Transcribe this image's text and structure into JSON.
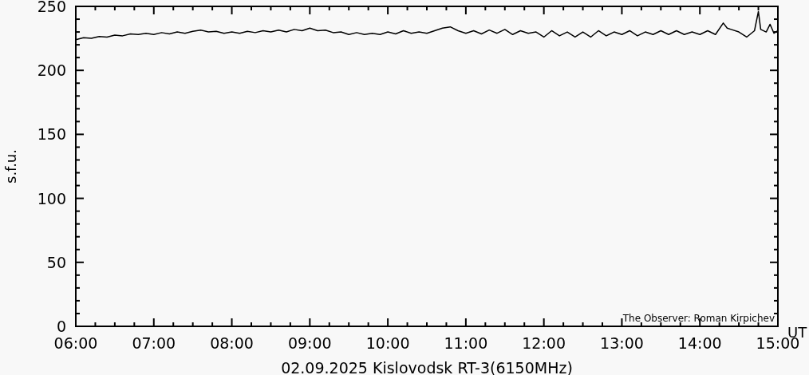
{
  "chart_data": {
    "type": "line",
    "xlabel": "02.09.2025 Kislovodsk RT-3(6150MHz)",
    "ylabel": "s.f.u.",
    "annotations": [
      "UT",
      "The Observer: Roman Kirpichev"
    ],
    "xlim": [
      6,
      15
    ],
    "ylim": [
      0,
      250
    ],
    "xticks": [
      {
        "value": 6,
        "label": "06:00"
      },
      {
        "value": 6.25,
        "label": null
      },
      {
        "value": 6.5,
        "label": null
      },
      {
        "value": 6.75,
        "label": null
      },
      {
        "value": 7,
        "label": "07:00"
      },
      {
        "value": 7.25,
        "label": null
      },
      {
        "value": 7.5,
        "label": null
      },
      {
        "value": 7.75,
        "label": null
      },
      {
        "value": 8,
        "label": "08:00"
      },
      {
        "value": 8.25,
        "label": null
      },
      {
        "value": 8.5,
        "label": null
      },
      {
        "value": 8.75,
        "label": null
      },
      {
        "value": 9,
        "label": "09:00"
      },
      {
        "value": 9.25,
        "label": null
      },
      {
        "value": 9.5,
        "label": null
      },
      {
        "value": 9.75,
        "label": null
      },
      {
        "value": 10,
        "label": "10:00"
      },
      {
        "value": 10.25,
        "label": null
      },
      {
        "value": 10.5,
        "label": null
      },
      {
        "value": 10.75,
        "label": null
      },
      {
        "value": 11,
        "label": "11:00"
      },
      {
        "value": 11.25,
        "label": null
      },
      {
        "value": 11.5,
        "label": null
      },
      {
        "value": 11.75,
        "label": null
      },
      {
        "value": 12,
        "label": "12:00"
      },
      {
        "value": 12.25,
        "label": null
      },
      {
        "value": 12.5,
        "label": null
      },
      {
        "value": 12.75,
        "label": null
      },
      {
        "value": 13,
        "label": "13:00"
      },
      {
        "value": 13.25,
        "label": null
      },
      {
        "value": 13.5,
        "label": null
      },
      {
        "value": 13.75,
        "label": null
      },
      {
        "value": 14,
        "label": "14:00"
      },
      {
        "value": 14.25,
        "label": null
      },
      {
        "value": 14.5,
        "label": null
      },
      {
        "value": 14.75,
        "label": null
      },
      {
        "value": 15,
        "label": "15:00"
      }
    ],
    "yticks": [
      0,
      {
        "value": 10,
        "label": null
      },
      {
        "value": 20,
        "label": null
      },
      {
        "value": 30,
        "label": null
      },
      {
        "value": 40,
        "label": null
      },
      50,
      {
        "value": 60,
        "label": null
      },
      {
        "value": 70,
        "label": null
      },
      {
        "value": 80,
        "label": null
      },
      {
        "value": 90,
        "label": null
      },
      100,
      {
        "value": 110,
        "label": null
      },
      {
        "value": 120,
        "label": null
      },
      {
        "value": 130,
        "label": null
      },
      {
        "value": 140,
        "label": null
      },
      150,
      {
        "value": 160,
        "label": null
      },
      {
        "value": 170,
        "label": null
      },
      {
        "value": 180,
        "label": null
      },
      {
        "value": 190,
        "label": null
      },
      200,
      {
        "value": 210,
        "label": null
      },
      {
        "value": 220,
        "label": null
      },
      {
        "value": 230,
        "label": null
      },
      {
        "value": 240,
        "label": null
      },
      250
    ],
    "grid": false,
    "marker": "none",
    "line_style": "solid",
    "series": [
      {
        "color": "#000000",
        "x": [
          6.0,
          6.1,
          6.2,
          6.3,
          6.4,
          6.5,
          6.6,
          6.7,
          6.8,
          6.9,
          7.0,
          7.1,
          7.2,
          7.3,
          7.4,
          7.5,
          7.6,
          7.7,
          7.8,
          7.9,
          8.0,
          8.1,
          8.2,
          8.3,
          8.4,
          8.5,
          8.6,
          8.7,
          8.8,
          8.9,
          9.0,
          9.1,
          9.2,
          9.3,
          9.4,
          9.5,
          9.6,
          9.7,
          9.8,
          9.9,
          10.0,
          10.1,
          10.2,
          10.3,
          10.4,
          10.5,
          10.6,
          10.7,
          10.8,
          10.9,
          11.0,
          11.1,
          11.2,
          11.3,
          11.4,
          11.5,
          11.6,
          11.7,
          11.8,
          11.9,
          12.0,
          12.1,
          12.2,
          12.3,
          12.4,
          12.5,
          12.6,
          12.7,
          12.8,
          12.9,
          13.0,
          13.1,
          13.2,
          13.3,
          13.4,
          13.5,
          13.6,
          13.7,
          13.8,
          13.9,
          14.0,
          14.1,
          14.2,
          14.3,
          14.35,
          14.4,
          14.5,
          14.6,
          14.7,
          14.75,
          14.78,
          14.85,
          14.9,
          14.95,
          15.0
        ],
        "values": [
          224,
          225.5,
          225,
          226.5,
          226,
          227.5,
          227,
          228.5,
          228,
          229,
          228,
          229.5,
          228.5,
          230,
          229,
          230.5,
          231.5,
          230,
          230.5,
          229,
          230,
          229,
          230.5,
          229.5,
          231,
          230,
          231.5,
          230,
          232,
          231,
          233,
          231,
          231.5,
          229.5,
          230,
          228,
          229.5,
          228,
          229,
          228,
          230,
          228.5,
          231,
          229,
          230,
          229,
          231,
          233,
          234,
          231,
          229,
          231,
          228.5,
          231.5,
          229,
          232,
          228,
          231,
          229,
          230,
          226,
          231,
          227,
          230,
          226,
          230,
          226,
          231,
          227,
          230,
          228,
          231,
          227,
          230,
          228,
          231,
          228,
          231,
          228,
          230,
          228,
          231,
          228,
          237,
          233,
          232,
          230,
          226,
          231,
          246,
          232,
          230,
          236,
          229,
          231
        ]
      }
    ]
  }
}
